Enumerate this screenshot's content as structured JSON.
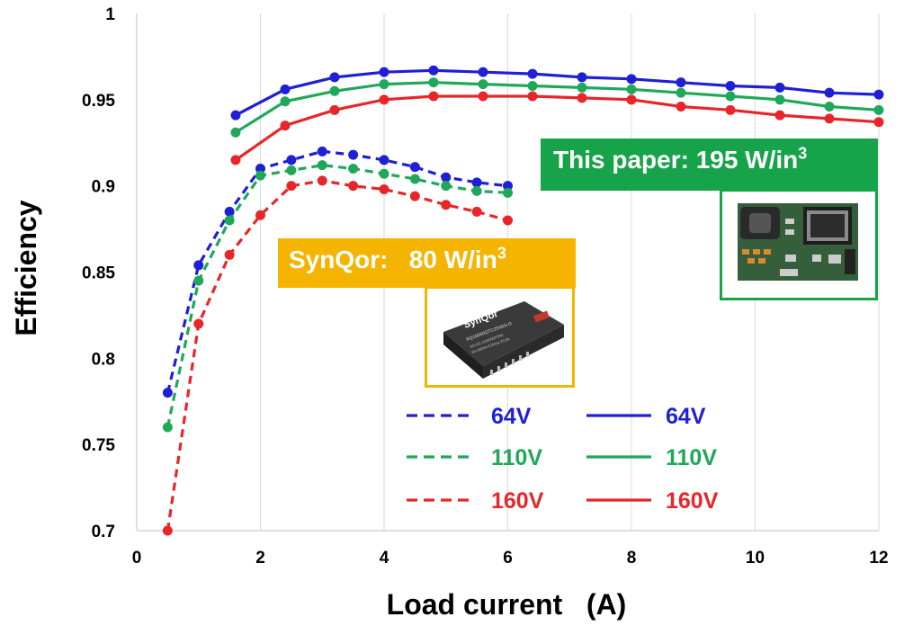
{
  "chart_data": {
    "type": "line",
    "title": "",
    "xlabel": "Load current   (A)",
    "ylabel": "Efficiency",
    "xlim": [
      0,
      12
    ],
    "ylim": [
      0.7,
      1.0
    ],
    "x_ticks": [
      "0",
      "2",
      "4",
      "6",
      "8",
      "10",
      "12"
    ],
    "y_ticks": [
      "0.7",
      "0.75",
      "0.8",
      "0.85",
      "0.9",
      "0.95",
      "1"
    ],
    "grid": "vertical",
    "legend_placement": "bottom-right",
    "series": [
      {
        "name": "64V",
        "group": "SynQor",
        "style": "dashed",
        "color": "#1f1fd6",
        "x": [
          0.5,
          1.0,
          1.5,
          2.0,
          2.5,
          3.0,
          3.5,
          4.0,
          4.5,
          5.0,
          5.5,
          6.0
        ],
        "y": [
          0.78,
          0.854,
          0.885,
          0.91,
          0.915,
          0.92,
          0.918,
          0.915,
          0.911,
          0.905,
          0.902,
          0.9
        ]
      },
      {
        "name": "110V",
        "group": "SynQor",
        "style": "dashed",
        "color": "#1fa85a",
        "x": [
          0.5,
          1.0,
          1.5,
          2.0,
          2.5,
          3.0,
          3.5,
          4.0,
          4.5,
          5.0,
          5.5,
          6.0
        ],
        "y": [
          0.76,
          0.845,
          0.88,
          0.906,
          0.909,
          0.912,
          0.91,
          0.907,
          0.904,
          0.9,
          0.897,
          0.896
        ]
      },
      {
        "name": "160V",
        "group": "SynQor",
        "style": "dashed",
        "color": "#e8262a",
        "x": [
          0.5,
          1.0,
          1.5,
          2.0,
          2.5,
          3.0,
          3.5,
          4.0,
          4.5,
          5.0,
          5.5,
          6.0
        ],
        "y": [
          0.7,
          0.82,
          0.86,
          0.883,
          0.9,
          0.903,
          0.9,
          0.898,
          0.894,
          0.889,
          0.885,
          0.88
        ]
      },
      {
        "name": "64V",
        "group": "This paper",
        "style": "solid",
        "color": "#1f1fd6",
        "x": [
          1.6,
          2.4,
          3.2,
          4.0,
          4.8,
          5.6,
          6.4,
          7.2,
          8.0,
          8.8,
          9.6,
          10.4,
          11.2,
          12.0
        ],
        "y": [
          0.941,
          0.956,
          0.963,
          0.966,
          0.967,
          0.966,
          0.965,
          0.963,
          0.962,
          0.96,
          0.958,
          0.957,
          0.954,
          0.953
        ]
      },
      {
        "name": "110V",
        "group": "This paper",
        "style": "solid",
        "color": "#1fa85a",
        "x": [
          1.6,
          2.4,
          3.2,
          4.0,
          4.8,
          5.6,
          6.4,
          7.2,
          8.0,
          8.8,
          9.6,
          10.4,
          11.2,
          12.0
        ],
        "y": [
          0.931,
          0.949,
          0.955,
          0.959,
          0.96,
          0.959,
          0.958,
          0.957,
          0.956,
          0.954,
          0.952,
          0.95,
          0.946,
          0.944
        ]
      },
      {
        "name": "160V",
        "group": "This paper",
        "style": "solid",
        "color": "#e8262a",
        "x": [
          1.6,
          2.4,
          3.2,
          4.0,
          4.8,
          5.6,
          6.4,
          7.2,
          8.0,
          8.8,
          9.6,
          10.4,
          11.2,
          12.0
        ],
        "y": [
          0.915,
          0.935,
          0.944,
          0.95,
          0.952,
          0.952,
          0.952,
          0.951,
          0.95,
          0.946,
          0.944,
          0.941,
          0.939,
          0.937
        ]
      }
    ],
    "annotations": {
      "synqor": {
        "text": "SynQor:   80 W/in",
        "sup": "3",
        "color": "#f5b400"
      },
      "this_paper": {
        "text": "This paper: 195 W/in",
        "sup": "3",
        "color": "#16a34a"
      }
    },
    "photo_labels": {
      "synqor_module_brand": "SynQor",
      "synqor_module_part": "RQ1B050QTC25N6S-G",
      "synqor_module_line1": "DC-DC CONVERTER",
      "synqor_module_line2": "64-160Vin 5.0Vout 25.0A"
    }
  }
}
